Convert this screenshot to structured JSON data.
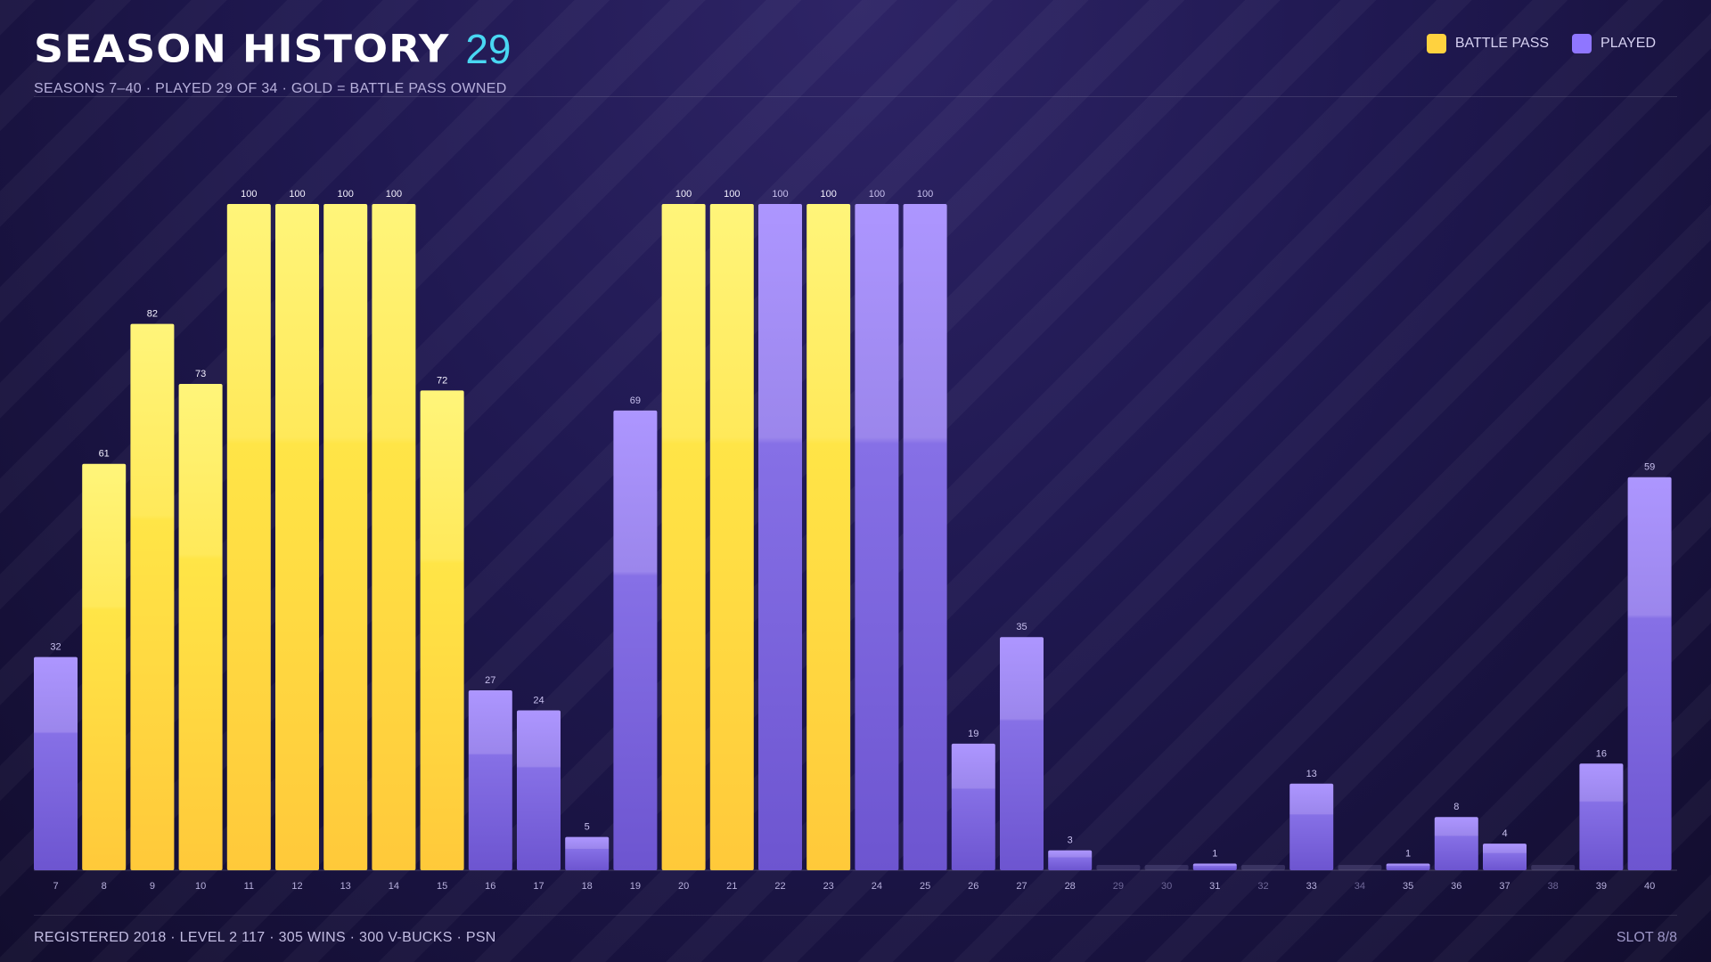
{
  "header": {
    "title": "SEASON HISTORY",
    "count": "29",
    "subtitle": "SEASONS 7–40 · PLAYED 29 OF 34 · GOLD = BATTLE PASS OWNED"
  },
  "legend": {
    "battle_pass_label": "BATTLE PASS",
    "played_label": "PLAYED"
  },
  "footer": {
    "left": "REGISTERED 2018 · LEVEL 2 117 · 305 WINS · 300 V-BUCKS · PSN",
    "right": "SLOT 8/8"
  },
  "colors": {
    "battle_pass": "#ffd23f",
    "played": "#8f76ff",
    "accent": "#49d7f2"
  },
  "chart_data": {
    "type": "bar",
    "categories": [
      "7",
      "8",
      "9",
      "10",
      "11",
      "12",
      "13",
      "14",
      "15",
      "16",
      "17",
      "18",
      "19",
      "20",
      "21",
      "22",
      "23",
      "24",
      "25",
      "26",
      "27",
      "28",
      "29",
      "30",
      "31",
      "32",
      "33",
      "34",
      "35",
      "36",
      "37",
      "38",
      "39",
      "40"
    ],
    "values": [
      32,
      61,
      82,
      73,
      100,
      100,
      100,
      100,
      72,
      27,
      24,
      5,
      69,
      100,
      100,
      100,
      100,
      100,
      100,
      19,
      35,
      3,
      0,
      0,
      1,
      0,
      13,
      0,
      1,
      8,
      4,
      0,
      16,
      59
    ],
    "battle_pass": [
      false,
      true,
      true,
      true,
      true,
      true,
      true,
      true,
      true,
      false,
      false,
      false,
      false,
      true,
      true,
      false,
      true,
      false,
      false,
      false,
      false,
      false,
      false,
      false,
      false,
      false,
      false,
      false,
      false,
      false,
      false,
      false,
      false,
      false
    ],
    "ylim": [
      0,
      100
    ],
    "legend_position": "top-right",
    "grid": false
  }
}
